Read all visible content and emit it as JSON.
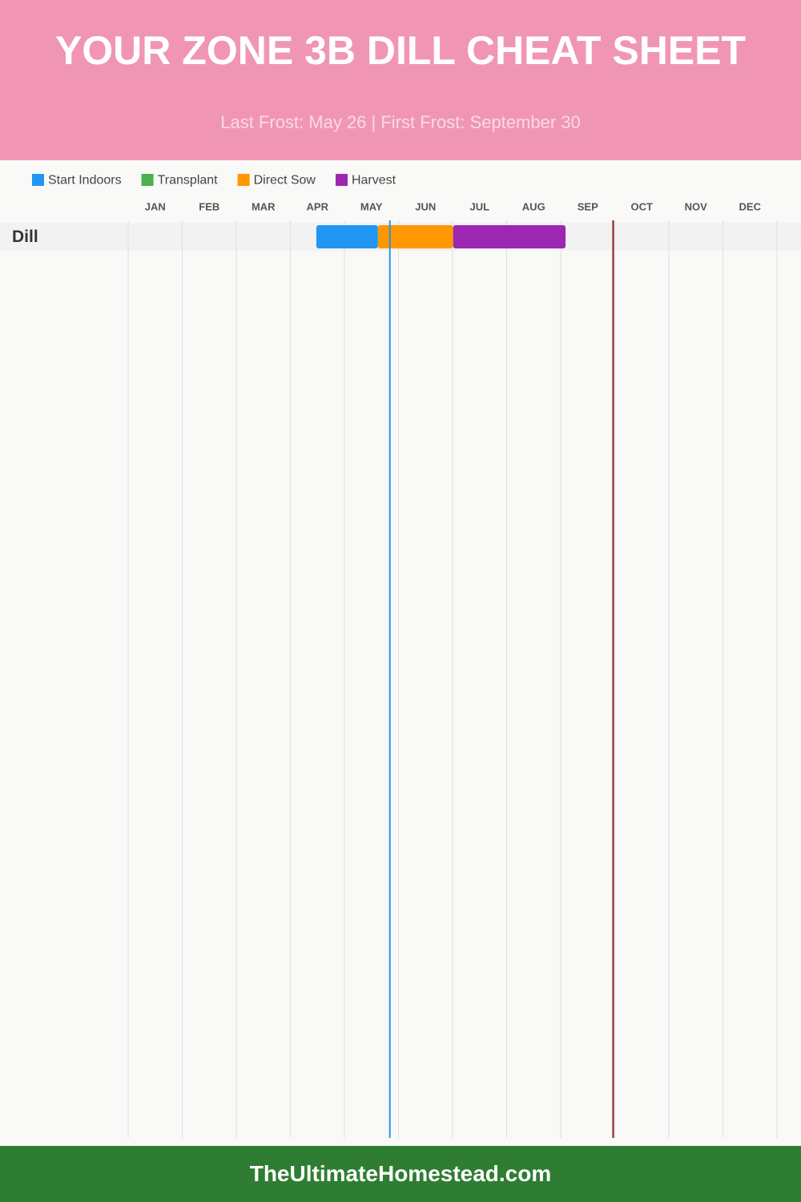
{
  "chart_data": {
    "type": "gantt",
    "title": "YOUR ZONE 3B DILL CHEAT SHEET",
    "subtitle": "Last Frost: May 26 | First Frost: September 30",
    "months": [
      "JAN",
      "FEB",
      "MAR",
      "APR",
      "MAY",
      "JUN",
      "JUL",
      "AUG",
      "SEP",
      "OCT",
      "NOV",
      "DEC"
    ],
    "xlim": [
      0,
      12
    ],
    "xticks": [
      0,
      1,
      2,
      3,
      4,
      5,
      6,
      7,
      8,
      9,
      10,
      11,
      12
    ],
    "grid": true,
    "categories": [
      "Dill"
    ],
    "series": [
      {
        "name": "Start Indoors",
        "color": "#2196f3",
        "values": [
          [
            3.48,
            4.62
          ]
        ]
      },
      {
        "name": "Transplant",
        "color": "#4caf50",
        "values": [
          null
        ]
      },
      {
        "name": "Direct Sow",
        "color": "#ff9800",
        "values": [
          [
            4.62,
            6.01
          ]
        ]
      },
      {
        "name": "Harvest",
        "color": "#9c27b0",
        "values": [
          [
            6.01,
            8.09
          ]
        ]
      }
    ],
    "last_frost": 4.84,
    "last_frost_color": "#2196f3",
    "first_frost": 8.97,
    "first_frost_color": "#8b1a1a"
  },
  "footer": "TheUltimateHomestead.com"
}
